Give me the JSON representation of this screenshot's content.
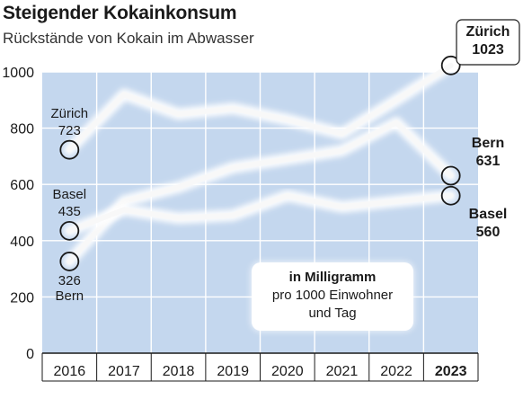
{
  "title": "Steigender Kokainkonsum",
  "subtitle": "Rückstände von Kokain im Abwasser",
  "unit_box": {
    "line1": "in Milligramm",
    "line2": "pro 1000 Einwohner",
    "line3": "und Tag"
  },
  "colors": {
    "plot_bg": "#c4d7ee",
    "grid": "#ffffff",
    "line": "#f7f7f7"
  },
  "chart_data": {
    "type": "line",
    "categories": [
      "2016",
      "2017",
      "2018",
      "2019",
      "2020",
      "2021",
      "2022",
      "2023"
    ],
    "highlight_category": "2023",
    "ylim": [
      0,
      1000
    ],
    "yticks": [
      "0",
      "200",
      "400",
      "600",
      "800",
      "1000"
    ],
    "ytick_values": [
      0,
      200,
      400,
      600,
      800,
      1000
    ],
    "grid": true,
    "series": [
      {
        "name": "Zürich",
        "values": [
          723,
          920,
          850,
          870,
          830,
          780,
          900,
          1023
        ],
        "start_label": {
          "name": "Zürich",
          "value": "723"
        },
        "end_label": {
          "name": "Zürich",
          "value": "1023"
        }
      },
      {
        "name": "Bern",
        "values": [
          326,
          540,
          590,
          660,
          690,
          720,
          820,
          631
        ],
        "start_label": {
          "name": "Bern",
          "value": "326"
        },
        "end_label": {
          "name": "Bern",
          "value": "631"
        }
      },
      {
        "name": "Basel",
        "values": [
          435,
          510,
          480,
          490,
          560,
          520,
          540,
          560
        ],
        "start_label": {
          "name": "Basel",
          "value": "435"
        },
        "end_label": {
          "name": "Basel",
          "value": "560"
        }
      }
    ]
  }
}
